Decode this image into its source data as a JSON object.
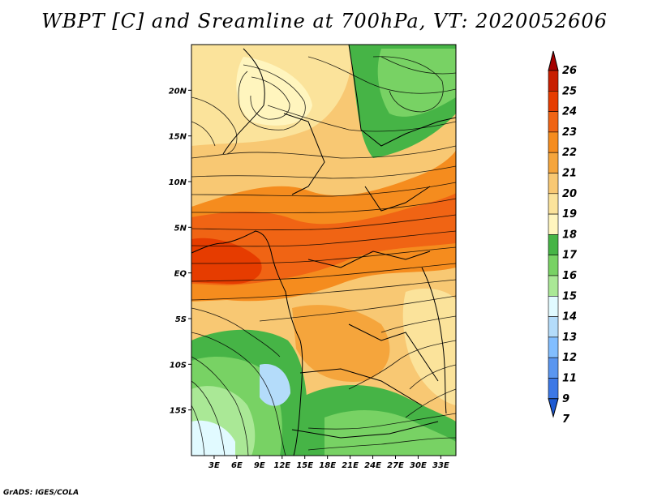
{
  "title": "WBPT [C] and Sreamline at 700hPa, VT: 2020052606",
  "footer": "GrADS: IGES/COLA",
  "map": {
    "lon_range": [
      0,
      35
    ],
    "lat_range": [
      -20,
      25
    ],
    "x_ticks": [
      "3E",
      "6E",
      "9E",
      "12E",
      "15E",
      "18E",
      "21E",
      "24E",
      "27E",
      "30E",
      "33E"
    ],
    "x_tick_values": [
      3,
      6,
      9,
      12,
      15,
      18,
      21,
      24,
      27,
      30,
      33
    ],
    "y_ticks": [
      "20N",
      "15N",
      "10N",
      "5N",
      "EQ",
      "5S",
      "10S",
      "15S"
    ],
    "y_tick_values": [
      20,
      15,
      10,
      5,
      0,
      -5,
      -10,
      -15
    ]
  },
  "colorbar": {
    "levels": [
      "26",
      "25",
      "24",
      "23",
      "22",
      "21",
      "20",
      "19",
      "18",
      "17",
      "16",
      "15",
      "14",
      "13",
      "12",
      "11",
      "9",
      "7"
    ],
    "colors": [
      "#a50000",
      "#c81e00",
      "#e63c00",
      "#f06414",
      "#f58c1e",
      "#f5a53c",
      "#f8c873",
      "#fbe39b",
      "#fff5be",
      "#46b446",
      "#78d264",
      "#aae896",
      "#e1faff",
      "#b4dcfa",
      "#82beff",
      "#5a96f0",
      "#3c78e6",
      "#1e5ad2"
    ]
  }
}
